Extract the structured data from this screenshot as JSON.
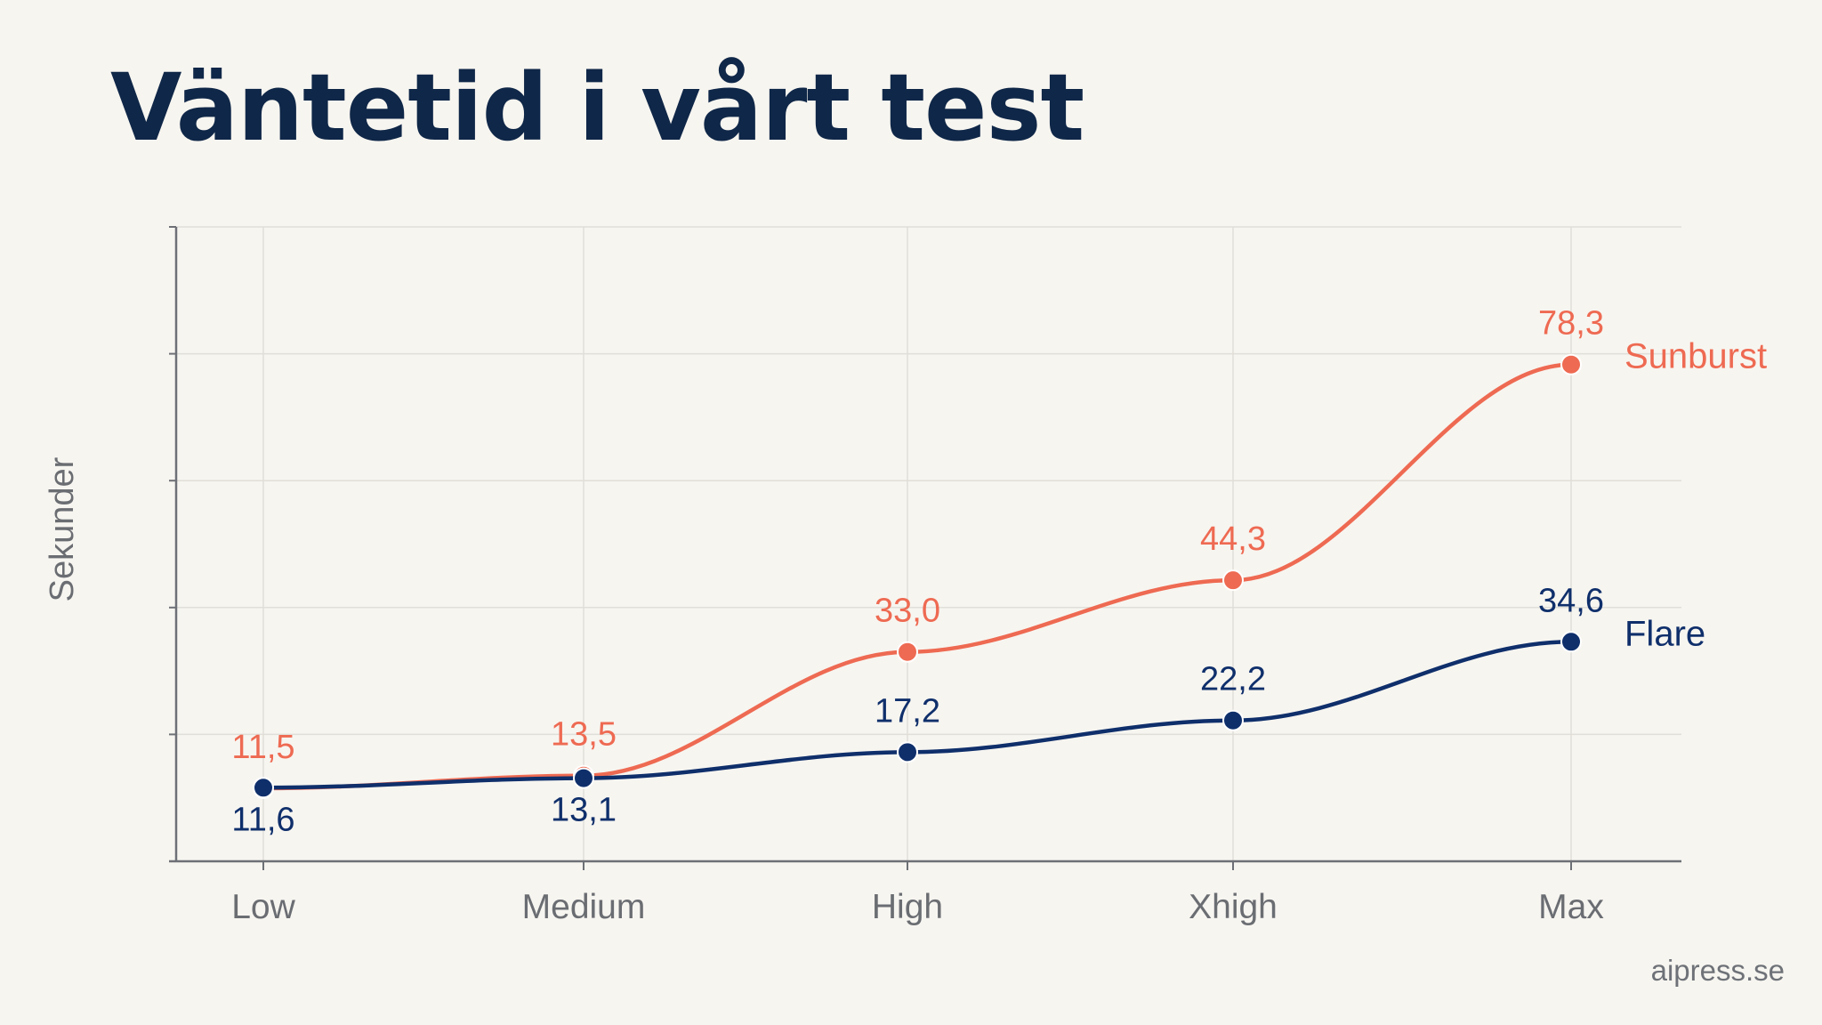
{
  "header": {
    "title": "Väntetid i vårt test"
  },
  "footer": {
    "credit": "aipress.se"
  },
  "chart_data": {
    "type": "line",
    "ylabel": "Sekunder",
    "categories": [
      "Low",
      "Medium",
      "High",
      "Xhigh",
      "Max"
    ],
    "ylim": [
      0,
      100
    ],
    "grid": true,
    "legend": "end-of-line labels (right)",
    "series": [
      {
        "name": "Sunburst",
        "color": "#ee6a52",
        "values": [
          11.5,
          13.5,
          33.0,
          44.3,
          78.3
        ],
        "labels": [
          "11,5",
          "13,5",
          "33,0",
          "44,3",
          "78,3"
        ]
      },
      {
        "name": "Flare",
        "color": "#0f2f6b",
        "values": [
          11.6,
          13.1,
          17.2,
          22.2,
          34.6
        ],
        "labels": [
          "11,6",
          "13,1",
          "17,2",
          "22,2",
          "34,6"
        ]
      }
    ]
  }
}
